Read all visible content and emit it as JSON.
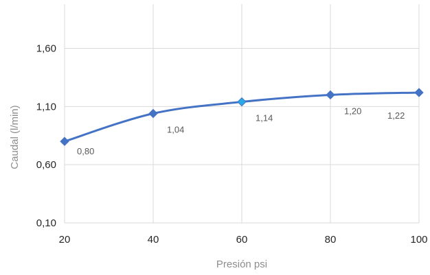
{
  "chart_data": {
    "type": "line",
    "title": "",
    "xlabel": "Presión psi",
    "ylabel": "Caudal (l/min)",
    "x": [
      20,
      40,
      60,
      80,
      100
    ],
    "x_tick_labels": [
      "20",
      "40",
      "60",
      "80",
      "100"
    ],
    "y_tick_labels": [
      "0,10",
      "0,60",
      "1,10",
      "1,60"
    ],
    "y_ticks": [
      0.1,
      0.6,
      1.1,
      1.6
    ],
    "xlim": [
      20,
      100
    ],
    "ylim": [
      0.1,
      1.98
    ],
    "grid": "vertical and horizontal",
    "smooth": true,
    "series": [
      {
        "values": [
          0.8,
          1.04,
          1.14,
          1.2,
          1.22
        ],
        "data_labels": [
          "0,80",
          "1,04",
          "1,14",
          "1,20",
          "1,22"
        ],
        "color": "#4472c4",
        "marker": "diamond",
        "highlight_index": 2,
        "highlight_color": "#2aa9e8"
      }
    ]
  }
}
